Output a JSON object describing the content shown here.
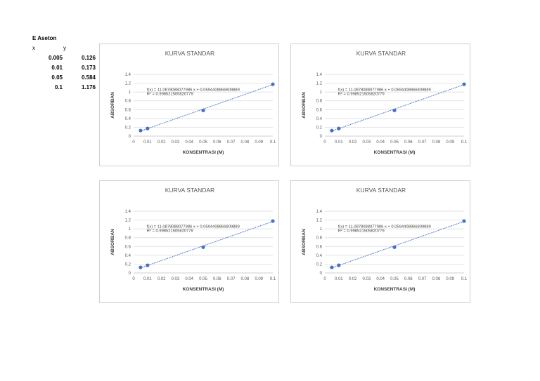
{
  "table": {
    "title": "E Aseton",
    "x_header": "x",
    "y_header": "y",
    "rows": [
      {
        "x": "0.005",
        "y": "0.126"
      },
      {
        "x": "0.01",
        "y": "0.173"
      },
      {
        "x": "0.05",
        "y": "0.584"
      },
      {
        "x": "0.1",
        "y": "1.176"
      }
    ]
  },
  "chart_data": [
    {
      "type": "scatter",
      "title": "KURVA STANDAR",
      "xlabel": "KONSENTRASI (M)",
      "ylabel": "ABSORBAN",
      "x": [
        0.005,
        0.01,
        0.05,
        0.1
      ],
      "y": [
        0.126,
        0.173,
        0.584,
        1.176
      ],
      "xlim": [
        0,
        0.1
      ],
      "ylim": [
        0,
        1.4
      ],
      "xticks": [
        "0",
        "0.01",
        "0.02",
        "0.03",
        "0.04",
        "0.05",
        "0.06",
        "0.07",
        "0.08",
        "0.09",
        "0.1"
      ],
      "yticks": [
        "0",
        "0.2",
        "0.4",
        "0.6",
        "0.8",
        "1",
        "1.2",
        "1.4"
      ],
      "trendline": {
        "slope": 11.0878088077986,
        "intercept": 0.0594408866809889
      },
      "equation": "f(x) = 11.0878088077986 x + 0.0594408866809889",
      "r2": "R² = 0.998521505820779",
      "grid": true,
      "marker_color": "#4472c4"
    },
    {
      "type": "scatter",
      "title": "KURVA STANDAR",
      "xlabel": "KONSENTRASI (M)",
      "ylabel": "ABSORBAN",
      "x": [
        0.005,
        0.01,
        0.05,
        0.1
      ],
      "y": [
        0.126,
        0.173,
        0.584,
        1.176
      ],
      "xlim": [
        0,
        0.1
      ],
      "ylim": [
        0,
        1.4
      ],
      "xticks": [
        "0",
        "0.01",
        "0.02",
        "0.03",
        "0.04",
        "0.05",
        "0.06",
        "0.07",
        "0.08",
        "0.09",
        "0.1"
      ],
      "yticks": [
        "0",
        "0.2",
        "0.4",
        "0.6",
        "0.8",
        "1",
        "1.2",
        "1.4"
      ],
      "trendline": {
        "slope": 11.0878088077986,
        "intercept": 0.0594408866809889
      },
      "equation": "f(x) = 11.0878088077986 x + 0.0594408866809889",
      "r2": "R² = 0.998521505820779",
      "grid": true,
      "marker_color": "#4472c4"
    },
    {
      "type": "scatter",
      "title": "KURVA STANDAR",
      "xlabel": "KONSENTRASI (M)",
      "ylabel": "ABSORBAN",
      "x": [
        0.005,
        0.01,
        0.05,
        0.1
      ],
      "y": [
        0.126,
        0.173,
        0.584,
        1.176
      ],
      "xlim": [
        0,
        0.1
      ],
      "ylim": [
        0,
        1.4
      ],
      "xticks": [
        "0",
        "0.01",
        "0.02",
        "0.03",
        "0.04",
        "0.05",
        "0.06",
        "0.07",
        "0.08",
        "0.09",
        "0.1"
      ],
      "yticks": [
        "0",
        "0.2",
        "0.4",
        "0.6",
        "0.8",
        "1",
        "1.2",
        "1.4"
      ],
      "trendline": {
        "slope": 11.0878088077986,
        "intercept": 0.0594408866809889
      },
      "equation": "f(x) = 11.0878088077986 x + 0.0594408866809889",
      "r2": "R² = 0.998521505820779",
      "grid": true,
      "marker_color": "#4472c4"
    },
    {
      "type": "scatter",
      "title": "KURVA STANDAR",
      "xlabel": "KONSENTRASI (M)",
      "ylabel": "ABSORBAN",
      "x": [
        0.005,
        0.01,
        0.05,
        0.1
      ],
      "y": [
        0.126,
        0.173,
        0.584,
        1.176
      ],
      "xlim": [
        0,
        0.1
      ],
      "ylim": [
        0,
        1.4
      ],
      "xticks": [
        "0",
        "0.01",
        "0.02",
        "0.03",
        "0.04",
        "0.05",
        "0.06",
        "0.07",
        "0.08",
        "0.09",
        "0.1"
      ],
      "yticks": [
        "0",
        "0.2",
        "0.4",
        "0.6",
        "0.8",
        "1",
        "1.2",
        "1.4"
      ],
      "trendline": {
        "slope": 11.0878088077986,
        "intercept": 0.0594408866809889
      },
      "equation": "f(x) = 11.0878088077986 x + 0.0594408866809889",
      "r2": "R² = 0.998521505820779",
      "grid": true,
      "marker_color": "#4472c4"
    }
  ]
}
